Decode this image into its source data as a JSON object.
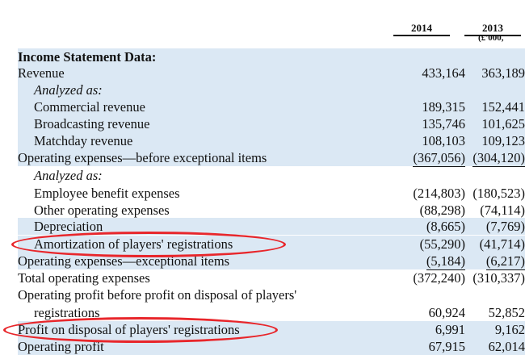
{
  "header": {
    "year_2014": "2014",
    "year_2013": "2013",
    "unit": "(£'000,"
  },
  "rows": [
    {
      "label": "Income Statement Data:",
      "v2014": "",
      "v2013": "",
      "style": "bold"
    },
    {
      "label": "Revenue",
      "v2014": "433,164",
      "v2013": "363,189",
      "style": ""
    },
    {
      "label": "Analyzed as:",
      "v2014": "",
      "v2013": "",
      "style": "italic"
    },
    {
      "label": "Commercial revenue",
      "v2014": "189,315",
      "v2013": "152,441",
      "style": ""
    },
    {
      "label": "Broadcasting revenue",
      "v2014": "135,746",
      "v2013": "101,625",
      "style": ""
    },
    {
      "label": "Matchday revenue",
      "v2014": "108,103",
      "v2013": "109,123",
      "style": ""
    },
    {
      "label": "Operating expenses—before exceptional items",
      "v2014": "(367,056)",
      "v2013": "(304,120)",
      "style": ""
    },
    {
      "label": "Analyzed as:",
      "v2014": "",
      "v2013": "",
      "style": "italic"
    },
    {
      "label": "Employee benefit expenses",
      "v2014": "(214,803)",
      "v2013": "(180,523)",
      "style": ""
    },
    {
      "label": "Other operating expenses",
      "v2014": "(88,298)",
      "v2013": "(74,114)",
      "style": ""
    },
    {
      "label": "Depreciation",
      "v2014": "(8,665)",
      "v2013": "(7,769)",
      "style": ""
    },
    {
      "label": "Amortization of players' registrations",
      "v2014": "(55,290)",
      "v2013": "(41,714)",
      "style": ""
    },
    {
      "label": "Operating expenses—exceptional items",
      "v2014": "(5,184)",
      "v2013": "(6,217)",
      "style": ""
    },
    {
      "label": "Total operating expenses",
      "v2014": "(372,240)",
      "v2013": "(310,337)",
      "style": ""
    },
    {
      "label": "Operating profit before profit on disposal of players'",
      "v2014": "",
      "v2013": "",
      "style": ""
    },
    {
      "label": "registrations",
      "v2014": "60,924",
      "v2013": "52,852",
      "style": ""
    },
    {
      "label": "Profit on disposal of players' registrations",
      "v2014": "6,991",
      "v2013": "9,162",
      "style": ""
    },
    {
      "label": "Operating profit",
      "v2014": "67,915",
      "v2013": "62,014",
      "style": ""
    }
  ]
}
